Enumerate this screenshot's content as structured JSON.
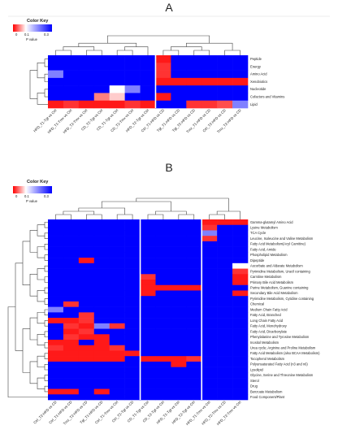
{
  "panels": [
    {
      "letter": "A",
      "color_key": {
        "title": "Color Key",
        "ticks": [
          "0",
          "0.1",
          "0.3"
        ],
        "xlabel": "P value"
      },
      "rows": [
        "Peptide",
        "Energy",
        "Amino Acid",
        "Xenobiotics",
        "Nucleotide",
        "Cofactors and Vitamins",
        "Lipid"
      ],
      "columns": [
        "HFD_T1-Tgt vs Ctrl",
        "HFD_T1-Tmx vs Ctrl",
        "HFD_T2-Tmx vs Ctrl",
        "CD_T2-Tgt vs Ctrl",
        "CD_T1-Tgt vs Ctrl",
        "CD_T2-Tmx vs Ctrl",
        "HFD_T2-Tgt vs Ctrl",
        "Ctrl_T1-HFD vs CD",
        "Tgt_T1-HFD vs CD",
        "Tgt_T2-HFD vs CD",
        "Tmx_T1-HFD vs CD",
        "Ctrl_T2-HFD vs CD",
        "Tmx_T2-HFD vs CD"
      ],
      "col_separators": [
        7
      ]
    },
    {
      "letter": "B",
      "color_key": {
        "title": "Color Key",
        "ticks": [
          "0",
          "0.1",
          "0.3"
        ],
        "xlabel": "P value"
      },
      "rows": [
        "Gamma-glutamyl Amino Acid",
        "Lysine Metabolism",
        "TCA Cycle",
        "Leucine, Isoleucine and Valine Metabolism",
        "Fatty Acid Metabolism(Acyl Carnitine)",
        "Fatty Acid, Amide",
        "Phospholipid Metabolism",
        "Dipeptide",
        "Ascorbate and Aldarate Metabolism",
        "Pyrimidine Metabolism, Uracil containing",
        "Carnitine Metabolism",
        "Primary Bile Acid Metabolism",
        "Purine Metabolism, Guanine containing",
        "Secondary Bile Acid Metabolism",
        "Pyrimidine Metabolism, Cytidine containing",
        "Chemical",
        "Medium Chain Fatty Acid",
        "Fatty Acid, Branched",
        "Long Chain Fatty Acid",
        "Fatty Acid, Monohydroxy",
        "Fatty Acid, Dicarboxylate",
        "Phenylalanine and Tyrosine Metabolism",
        "Inositol Metabolism",
        "Urea cycle; Arginine and Proline Metabolism",
        "Fatty Acid Metabolism (also BCAA Metabolism)",
        "Tocopherol Metabolism",
        "Polyunsaturated Fatty Acid (n3 and n6)",
        "Lysolipid",
        "Glycine, Serine and Threonine Metabolism",
        "Sterol",
        "Drug",
        "Benzoate Metabolism",
        "Food Component/Plant"
      ],
      "columns": [
        "Ctrl_T2-HFD vs CD",
        "Ctrl_T1-HFD vs CD",
        "Tmx_T2-HFD vs CD",
        "Tgt_T1-HFD vs CD",
        "Ctrl_T1-Tmx vs Ctrl",
        "Ctrl_T2-Tgt vs CD",
        "CD_T1-Tgt vs Ctrl",
        "CD_T2-Tgt vs Ctrl",
        "HFD_T1-Tgt vs Ctrl",
        "HFD_T2-Tgt vs Ctrl",
        "HFD_T1-Tmx vs Ctrl",
        "HFD_T2-Tmx vs CD",
        "HFD_T2-Tmx vs Ctrl"
      ],
      "col_separators": [
        6,
        10
      ]
    }
  ],
  "chart_data": [
    {
      "type": "heatmap",
      "title": "A",
      "colorscale": {
        "label": "P value",
        "ticks": [
          0,
          0.1,
          0.3
        ],
        "low_color": "#ff0000",
        "mid_color": "#ffffff",
        "high_color": "#0000ff"
      },
      "rows": [
        "Peptide",
        "Energy",
        "Amino Acid",
        "Xenobiotics",
        "Nucleotide",
        "Cofactors and Vitamins",
        "Lipid"
      ],
      "columns": [
        "HFD_T1-Tgt vs Ctrl",
        "HFD_T1-Tmx vs Ctrl",
        "HFD_T2-Tmx vs Ctrl",
        "CD_T2-Tgt vs Ctrl",
        "CD_T1-Tgt vs Ctrl",
        "CD_T2-Tmx vs Ctrl",
        "HFD_T2-Tgt vs Ctrl",
        "Ctrl_T1-HFD vs CD",
        "Tgt_T1-HFD vs CD",
        "Tgt_T2-HFD vs CD",
        "Tmx_T1-HFD vs CD",
        "Ctrl_T2-HFD vs CD",
        "Tmx_T2-HFD vs CD"
      ],
      "values": [
        [
          0.5,
          0.5,
          0.3,
          0.5,
          0.5,
          0.5,
          0.5,
          0.01,
          0.5,
          0.5,
          0.5,
          0.5,
          0.5
        ],
        [
          0.5,
          0.5,
          0.5,
          0.5,
          0.5,
          0.5,
          0.5,
          0.02,
          0.5,
          0.5,
          0.7,
          0.5,
          0.5
        ],
        [
          0.2,
          0.5,
          0.5,
          0.5,
          0.5,
          0.5,
          0.5,
          0.02,
          0.5,
          0.5,
          0.5,
          0.5,
          0.5
        ],
        [
          0.5,
          0.5,
          0.5,
          0.5,
          0.5,
          0.5,
          0.5,
          0.01,
          0.01,
          0.01,
          0.01,
          0.01,
          0.01
        ],
        [
          0.5,
          0.5,
          0.5,
          0.3,
          0.1,
          0.2,
          0.5,
          0.5,
          0.5,
          0.3,
          0.5,
          0.5,
          0.5
        ],
        [
          0.5,
          0.5,
          0.3,
          0.05,
          0.08,
          0.5,
          0.5,
          0.01,
          0.3,
          0.5,
          0.5,
          0.5,
          0.5
        ],
        [
          0.01,
          0.02,
          0.01,
          0.01,
          0.01,
          0.02,
          0.01,
          0.3,
          0.5,
          0.02,
          0.02,
          0.03,
          0.2
        ]
      ]
    },
    {
      "type": "heatmap",
      "title": "B",
      "colorscale": {
        "label": "P value",
        "ticks": [
          0,
          0.1,
          0.3
        ],
        "low_color": "#ff0000",
        "mid_color": "#ffffff",
        "high_color": "#0000ff"
      },
      "rows": [
        "Gamma-glutamyl Amino Acid",
        "Lysine Metabolism",
        "TCA Cycle",
        "Leucine, Isoleucine and Valine Metabolism",
        "Fatty Acid Metabolism(Acyl Carnitine)",
        "Fatty Acid, Amide",
        "Phospholipid Metabolism",
        "Dipeptide",
        "Ascorbate and Aldarate Metabolism",
        "Pyrimidine Metabolism, Uracil containing",
        "Carnitine Metabolism",
        "Primary Bile Acid Metabolism",
        "Purine Metabolism, Guanine containing",
        "Secondary Bile Acid Metabolism",
        "Pyrimidine Metabolism, Cytidine containing",
        "Chemical",
        "Medium Chain Fatty Acid",
        "Fatty Acid, Branched",
        "Long Chain Fatty Acid",
        "Fatty Acid, Monohydroxy",
        "Fatty Acid, Dicarboxylate",
        "Phenylalanine and Tyrosine Metabolism",
        "Inositol Metabolism",
        "Urea cycle; Arginine and Proline Metabolism",
        "Fatty Acid Metabolism (also BCAA Metabolism)",
        "Tocopherol Metabolism",
        "Polyunsaturated Fatty Acid (n3 and n6)",
        "Lysolipid",
        "Glycine, Serine and Threonine Metabolism",
        "Sterol",
        "Drug",
        "Benzoate Metabolism",
        "Food Component/Plant"
      ],
      "columns": [
        "Ctrl_T2-HFD vs CD",
        "Ctrl_T1-HFD vs CD",
        "Tmx_T2-HFD vs CD",
        "Tgt_T1-HFD vs CD",
        "Ctrl_T1-Tmx vs Ctrl",
        "Ctrl_T2-Tgt vs CD",
        "CD_T1-Tgt vs Ctrl",
        "CD_T2-Tgt vs Ctrl",
        "HFD_T1-Tgt vs Ctrl",
        "HFD_T2-Tgt vs Ctrl",
        "HFD_T1-Tmx vs Ctrl",
        "HFD_T2-Tmx vs CD",
        "HFD_T2-Tmx vs Ctrl"
      ],
      "values": [
        [
          0.5,
          0.5,
          0.5,
          0.5,
          0.5,
          0.5,
          0.5,
          0.5,
          0.5,
          0.5,
          0.01,
          0.01,
          0.01
        ],
        [
          0.5,
          0.5,
          0.5,
          0.5,
          0.5,
          0.5,
          0.5,
          0.5,
          0.5,
          0.5,
          0.02,
          0.3,
          0.5
        ],
        [
          0.5,
          0.5,
          0.5,
          0.5,
          0.5,
          0.5,
          0.5,
          0.5,
          0.5,
          0.5,
          0.2,
          0.5,
          0.5
        ],
        [
          0.5,
          0.5,
          0.5,
          0.5,
          0.5,
          0.5,
          0.5,
          0.5,
          0.5,
          0.5,
          0.02,
          0.3,
          0.5
        ],
        [
          0.5,
          0.5,
          0.5,
          0.5,
          0.5,
          0.5,
          0.5,
          0.5,
          0.5,
          0.5,
          0.5,
          0.5,
          0.5
        ],
        [
          0.5,
          0.5,
          0.5,
          0.5,
          0.5,
          0.5,
          0.5,
          0.5,
          0.5,
          0.5,
          0.5,
          0.5,
          0.5
        ],
        [
          0.5,
          0.5,
          0.5,
          0.5,
          0.5,
          0.5,
          0.5,
          0.5,
          0.5,
          0.5,
          0.5,
          0.5,
          0.5
        ],
        [
          0.5,
          0.5,
          0.01,
          0.5,
          0.5,
          0.5,
          0.5,
          0.5,
          0.5,
          0.5,
          0.5,
          0.5,
          0.5
        ],
        [
          0.5,
          0.5,
          0.5,
          0.5,
          0.5,
          0.5,
          0.5,
          0.5,
          0.5,
          0.5,
          0.5,
          0.5,
          0.1
        ],
        [
          0.5,
          0.5,
          0.5,
          0.5,
          0.5,
          0.5,
          0.5,
          0.5,
          0.5,
          0.5,
          0.5,
          0.3,
          0.02
        ],
        [
          0.5,
          0.5,
          0.5,
          0.5,
          0.5,
          0.5,
          0.02,
          0.3,
          0.5,
          0.5,
          0.5,
          0.5,
          0.01
        ],
        [
          0.5,
          0.5,
          0.5,
          0.5,
          0.5,
          0.5,
          0.01,
          0.5,
          0.5,
          0.5,
          0.5,
          0.5,
          0.01
        ],
        [
          0.5,
          0.5,
          0.5,
          0.5,
          0.5,
          0.5,
          0.01,
          0.01,
          0.01,
          0.01,
          0.3,
          0.5,
          0.5
        ],
        [
          0.5,
          0.5,
          0.5,
          0.5,
          0.5,
          0.5,
          0.01,
          0.5,
          0.5,
          0.5,
          0.5,
          0.5,
          0.01
        ],
        [
          0.5,
          0.5,
          0.5,
          0.5,
          0.5,
          0.5,
          0.5,
          0.5,
          0.5,
          0.5,
          0.5,
          0.5,
          0.5
        ],
        [
          0.5,
          0.02,
          0.5,
          0.5,
          0.5,
          0.5,
          0.5,
          0.5,
          0.5,
          0.5,
          0.5,
          0.5,
          0.5
        ],
        [
          0.2,
          0.5,
          0.5,
          0.3,
          0.5,
          0.5,
          0.5,
          0.5,
          0.5,
          0.5,
          0.5,
          0.5,
          0.5
        ],
        [
          0.5,
          0.3,
          0.02,
          0.5,
          0.3,
          0.5,
          0.5,
          0.5,
          0.5,
          0.5,
          0.5,
          0.5,
          0.5
        ],
        [
          0.01,
          0.01,
          0.02,
          0.3,
          0.5,
          0.5,
          0.5,
          0.5,
          0.5,
          0.5,
          0.5,
          0.5,
          0.5
        ],
        [
          0.5,
          0.02,
          0.01,
          0.2,
          0.02,
          0.5,
          0.5,
          0.5,
          0.5,
          0.5,
          0.5,
          0.5,
          0.5
        ],
        [
          0.5,
          0.01,
          0.02,
          0.5,
          0.5,
          0.5,
          0.5,
          0.5,
          0.5,
          0.5,
          0.5,
          0.5,
          0.5
        ],
        [
          0.5,
          0.02,
          0.01,
          0.01,
          0.3,
          0.5,
          0.5,
          0.5,
          0.5,
          0.5,
          0.5,
          0.5,
          0.5
        ],
        [
          0.01,
          0.01,
          0.5,
          0.01,
          0.5,
          0.5,
          0.5,
          0.5,
          0.5,
          0.5,
          0.5,
          0.5,
          0.5
        ],
        [
          0.02,
          0.01,
          0.01,
          0.01,
          0.02,
          0.5,
          0.5,
          0.5,
          0.5,
          0.5,
          0.5,
          0.5,
          0.5
        ],
        [
          0.01,
          0.01,
          0.01,
          0.01,
          0.01,
          0.01,
          0.5,
          0.5,
          0.5,
          0.5,
          0.5,
          0.5,
          0.5
        ],
        [
          0.01,
          0.01,
          0.01,
          0.01,
          0.01,
          0.3,
          0.01,
          0.01,
          0.01,
          0.02,
          0.5,
          0.5,
          0.5
        ],
        [
          0.5,
          0.5,
          0.5,
          0.5,
          0.5,
          0.5,
          0.5,
          0.5,
          0.01,
          0.5,
          0.5,
          0.5,
          0.5
        ],
        [
          0.5,
          0.5,
          0.5,
          0.5,
          0.5,
          0.5,
          0.5,
          0.5,
          0.5,
          0.5,
          0.5,
          0.5,
          0.5
        ],
        [
          0.5,
          0.5,
          0.5,
          0.5,
          0.5,
          0.5,
          0.5,
          0.5,
          0.5,
          0.5,
          0.5,
          0.5,
          0.5
        ],
        [
          0.5,
          0.5,
          0.5,
          0.5,
          0.5,
          0.5,
          0.5,
          0.5,
          0.5,
          0.5,
          0.5,
          0.5,
          0.5
        ],
        [
          0.5,
          0.5,
          0.5,
          0.5,
          0.5,
          0.5,
          0.5,
          0.5,
          0.5,
          0.5,
          0.5,
          0.5,
          0.5
        ],
        [
          0.01,
          0.01,
          0.5,
          0.01,
          0.5,
          0.5,
          0.5,
          0.5,
          0.5,
          0.5,
          0.5,
          0.5,
          0.5
        ],
        [
          0.5,
          0.5,
          0.5,
          0.5,
          0.5,
          0.5,
          0.5,
          0.5,
          0.5,
          0.5,
          0.5,
          0.5,
          0.5
        ]
      ]
    }
  ]
}
